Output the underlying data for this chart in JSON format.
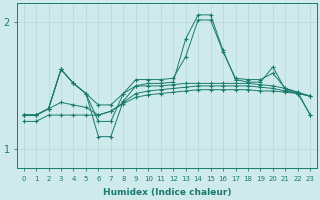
{
  "xlabel": "Humidex (Indice chaleur)",
  "ylabel": "",
  "xlim": [
    -0.5,
    23.5
  ],
  "ylim": [
    0.85,
    2.15
  ],
  "yticks": [
    1,
    2
  ],
  "xticks": [
    0,
    1,
    2,
    3,
    4,
    5,
    6,
    7,
    8,
    9,
    10,
    11,
    12,
    13,
    14,
    15,
    16,
    17,
    18,
    19,
    20,
    21,
    22,
    23
  ],
  "bg_color": "#ceeaea",
  "grid_color": "#b8d8d8",
  "line_color": "#1a7a6e",
  "lines": [
    [
      1.27,
      1.27,
      1.32,
      1.37,
      1.35,
      1.33,
      1.27,
      1.3,
      1.36,
      1.41,
      1.43,
      1.44,
      1.45,
      1.46,
      1.47,
      1.47,
      1.47,
      1.47,
      1.47,
      1.46,
      1.46,
      1.45,
      1.44,
      1.42
    ],
    [
      1.27,
      1.27,
      1.32,
      1.63,
      1.52,
      1.44,
      1.35,
      1.35,
      1.44,
      1.5,
      1.5,
      1.5,
      1.51,
      1.52,
      1.52,
      1.52,
      1.52,
      1.52,
      1.52,
      1.51,
      1.5,
      1.48,
      1.45,
      1.42
    ],
    [
      1.27,
      1.27,
      1.32,
      1.63,
      1.52,
      1.44,
      1.22,
      1.22,
      1.44,
      1.55,
      1.55,
      1.55,
      1.56,
      1.73,
      2.02,
      2.02,
      1.77,
      1.56,
      1.55,
      1.55,
      1.6,
      1.48,
      1.45,
      1.27
    ],
    [
      1.27,
      1.27,
      1.32,
      1.63,
      1.52,
      1.44,
      1.1,
      1.1,
      1.38,
      1.5,
      1.52,
      1.52,
      1.53,
      1.87,
      2.06,
      2.06,
      1.78,
      1.55,
      1.53,
      1.53,
      1.65,
      1.47,
      1.44,
      1.27
    ],
    [
      1.22,
      1.22,
      1.27,
      1.27,
      1.27,
      1.27,
      1.27,
      1.3,
      1.37,
      1.44,
      1.46,
      1.47,
      1.48,
      1.49,
      1.5,
      1.5,
      1.5,
      1.5,
      1.5,
      1.49,
      1.48,
      1.46,
      1.44,
      1.42
    ]
  ]
}
